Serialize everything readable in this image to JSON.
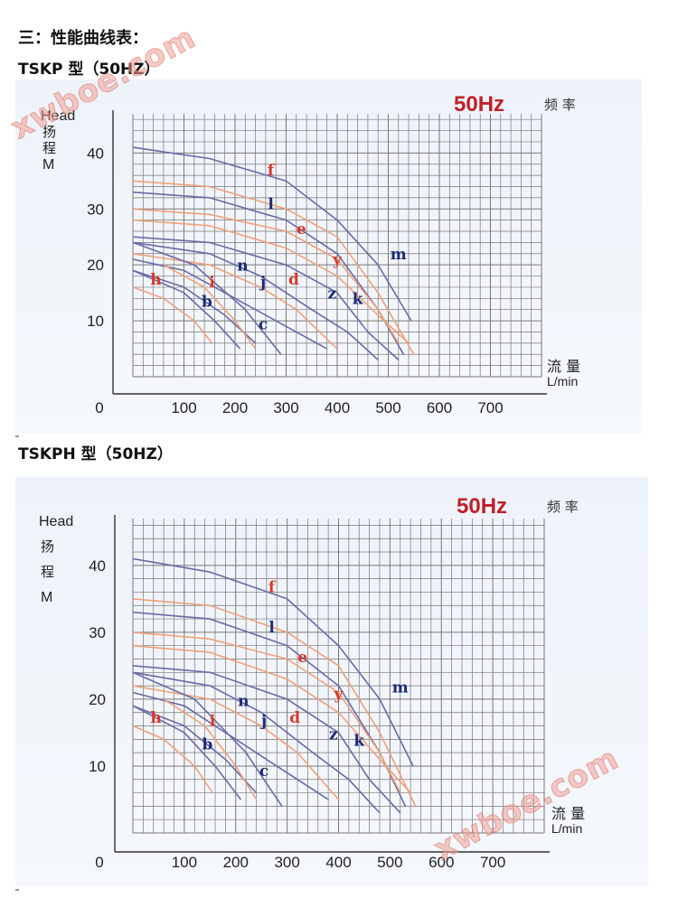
{
  "section_heading": "三：性能曲线表：",
  "watermark": "xwboe.com",
  "colors": {
    "purple_series": "#6a6aa8",
    "orange_series": "#f0a07a",
    "purple_label": "#1e2a78",
    "orange_label": "#d8382a",
    "grid": "#777777",
    "hz_badge": "#c0202a"
  },
  "chart_data": [
    {
      "type": "line",
      "title": "TSKP 型（50HZ）",
      "badge": "50Hz",
      "badge_suffix": "频 率",
      "ylabel": [
        "Head",
        "扬",
        "程",
        "M"
      ],
      "xlabel": [
        "流 量",
        "L/min"
      ],
      "xlim": [
        0,
        800
      ],
      "ylim": [
        0,
        47
      ],
      "x_ticks": [
        0,
        100,
        200,
        300,
        400,
        500,
        600,
        700
      ],
      "y_ticks": [
        10,
        20,
        30,
        40
      ],
      "grid": true,
      "series": [
        {
          "name": "f",
          "label_color": "orange",
          "line_color": "orange",
          "x": [
            0,
            150,
            300,
            400,
            480,
            550
          ],
          "y": [
            35,
            34,
            30,
            25,
            15,
            4
          ]
        },
        {
          "name": "l",
          "label_color": "purple",
          "line_color": "purple",
          "x": [
            0,
            150,
            300,
            400,
            480,
            530
          ],
          "y": [
            33,
            32,
            28,
            22,
            12,
            4
          ]
        },
        {
          "name": "e",
          "label_color": "orange",
          "line_color": "orange",
          "x": [
            0,
            150,
            300,
            400,
            480,
            520
          ],
          "y": [
            30,
            29,
            26,
            21,
            12,
            6
          ]
        },
        {
          "name": "m",
          "label_color": "purple",
          "line_color": "purple",
          "x": [
            0,
            150,
            300,
            400,
            480,
            545
          ],
          "y": [
            41,
            39,
            35,
            28,
            20,
            10
          ]
        },
        {
          "name": "y",
          "label_color": "orange",
          "line_color": "orange",
          "x": [
            0,
            150,
            300,
            400,
            480,
            540
          ],
          "y": [
            28,
            27,
            23,
            18,
            11,
            6
          ]
        },
        {
          "name": "k",
          "label_color": "purple",
          "line_color": "purple",
          "x": [
            0,
            150,
            300,
            400,
            460,
            520
          ],
          "y": [
            25,
            24,
            20,
            15,
            8,
            3
          ]
        },
        {
          "name": "z",
          "label_color": "purple",
          "line_color": "purple",
          "x": [
            0,
            150,
            250,
            350,
            420,
            480
          ],
          "y": [
            24,
            22,
            18,
            12,
            8,
            3
          ]
        },
        {
          "name": "d",
          "label_color": "orange",
          "line_color": "orange",
          "x": [
            0,
            150,
            250,
            320,
            400
          ],
          "y": [
            22,
            20,
            16,
            12,
            5
          ]
        },
        {
          "name": "n",
          "label_color": "purple",
          "line_color": "purple",
          "x": [
            0,
            100,
            200,
            300,
            380
          ],
          "y": [
            21,
            19,
            14,
            9,
            5
          ]
        },
        {
          "name": "j",
          "label_color": "purple",
          "line_color": "purple",
          "x": [
            0,
            100,
            180,
            240
          ],
          "y": [
            19,
            16,
            11,
            6
          ]
        },
        {
          "name": "c",
          "label_color": "purple",
          "line_color": "purple",
          "x": [
            0,
            120,
            220,
            290
          ],
          "y": [
            24,
            20,
            12,
            4
          ]
        },
        {
          "name": "i",
          "label_color": "orange",
          "line_color": "orange",
          "x": [
            60,
            140,
            200,
            240
          ],
          "y": [
            20,
            16,
            10,
            5
          ]
        },
        {
          "name": "b",
          "label_color": "purple",
          "line_color": "purple",
          "x": [
            0,
            100,
            160,
            210
          ],
          "y": [
            19,
            15,
            10,
            5
          ]
        },
        {
          "name": "h",
          "label_color": "orange",
          "line_color": "orange",
          "x": [
            0,
            60,
            120,
            155
          ],
          "y": [
            16,
            14,
            10,
            6
          ]
        }
      ]
    },
    {
      "type": "line",
      "title": "TSKPH 型（50HZ）",
      "badge": "50Hz",
      "badge_suffix": "频 率",
      "ylabel": [
        "Head",
        "扬",
        "程",
        "M"
      ],
      "xlabel": [
        "流 量",
        "L/min"
      ],
      "xlim": [
        0,
        800
      ],
      "ylim": [
        0,
        47
      ],
      "x_ticks": [
        0,
        100,
        200,
        300,
        400,
        500,
        600,
        700
      ],
      "y_ticks": [
        10,
        20,
        30,
        40
      ],
      "grid": true,
      "series": [
        {
          "name": "f",
          "label_color": "orange",
          "line_color": "orange",
          "x": [
            0,
            150,
            300,
            400,
            480,
            550
          ],
          "y": [
            35,
            34,
            30,
            25,
            15,
            4
          ]
        },
        {
          "name": "l",
          "label_color": "purple",
          "line_color": "purple",
          "x": [
            0,
            150,
            300,
            400,
            480,
            530
          ],
          "y": [
            33,
            32,
            28,
            22,
            12,
            4
          ]
        },
        {
          "name": "e",
          "label_color": "orange",
          "line_color": "orange",
          "x": [
            0,
            150,
            300,
            400,
            480,
            520
          ],
          "y": [
            30,
            29,
            26,
            21,
            12,
            6
          ]
        },
        {
          "name": "m",
          "label_color": "purple",
          "line_color": "purple",
          "x": [
            0,
            150,
            300,
            400,
            480,
            545
          ],
          "y": [
            41,
            39,
            35,
            28,
            20,
            10
          ]
        },
        {
          "name": "y",
          "label_color": "orange",
          "line_color": "orange",
          "x": [
            0,
            150,
            300,
            400,
            480,
            540
          ],
          "y": [
            28,
            27,
            23,
            18,
            11,
            6
          ]
        },
        {
          "name": "k",
          "label_color": "purple",
          "line_color": "purple",
          "x": [
            0,
            150,
            300,
            400,
            460,
            520
          ],
          "y": [
            25,
            24,
            20,
            15,
            8,
            3
          ]
        },
        {
          "name": "z",
          "label_color": "purple",
          "line_color": "purple",
          "x": [
            0,
            150,
            250,
            350,
            420,
            480
          ],
          "y": [
            24,
            22,
            18,
            12,
            8,
            3
          ]
        },
        {
          "name": "d",
          "label_color": "orange",
          "line_color": "orange",
          "x": [
            0,
            150,
            250,
            320,
            400
          ],
          "y": [
            22,
            20,
            16,
            12,
            5
          ]
        },
        {
          "name": "n",
          "label_color": "purple",
          "line_color": "purple",
          "x": [
            0,
            100,
            200,
            300,
            380
          ],
          "y": [
            21,
            19,
            14,
            9,
            5
          ]
        },
        {
          "name": "j",
          "label_color": "purple",
          "line_color": "purple",
          "x": [
            0,
            100,
            180,
            240
          ],
          "y": [
            19,
            16,
            11,
            6
          ]
        },
        {
          "name": "c",
          "label_color": "purple",
          "line_color": "purple",
          "x": [
            0,
            120,
            220,
            290
          ],
          "y": [
            24,
            20,
            12,
            4
          ]
        },
        {
          "name": "i",
          "label_color": "orange",
          "line_color": "orange",
          "x": [
            60,
            140,
            200,
            240
          ],
          "y": [
            20,
            16,
            10,
            5
          ]
        },
        {
          "name": "b",
          "label_color": "purple",
          "line_color": "purple",
          "x": [
            0,
            100,
            160,
            210
          ],
          "y": [
            19,
            15,
            10,
            5
          ]
        },
        {
          "name": "h",
          "label_color": "orange",
          "line_color": "orange",
          "x": [
            0,
            60,
            120,
            155
          ],
          "y": [
            16,
            14,
            10,
            6
          ]
        }
      ]
    }
  ]
}
